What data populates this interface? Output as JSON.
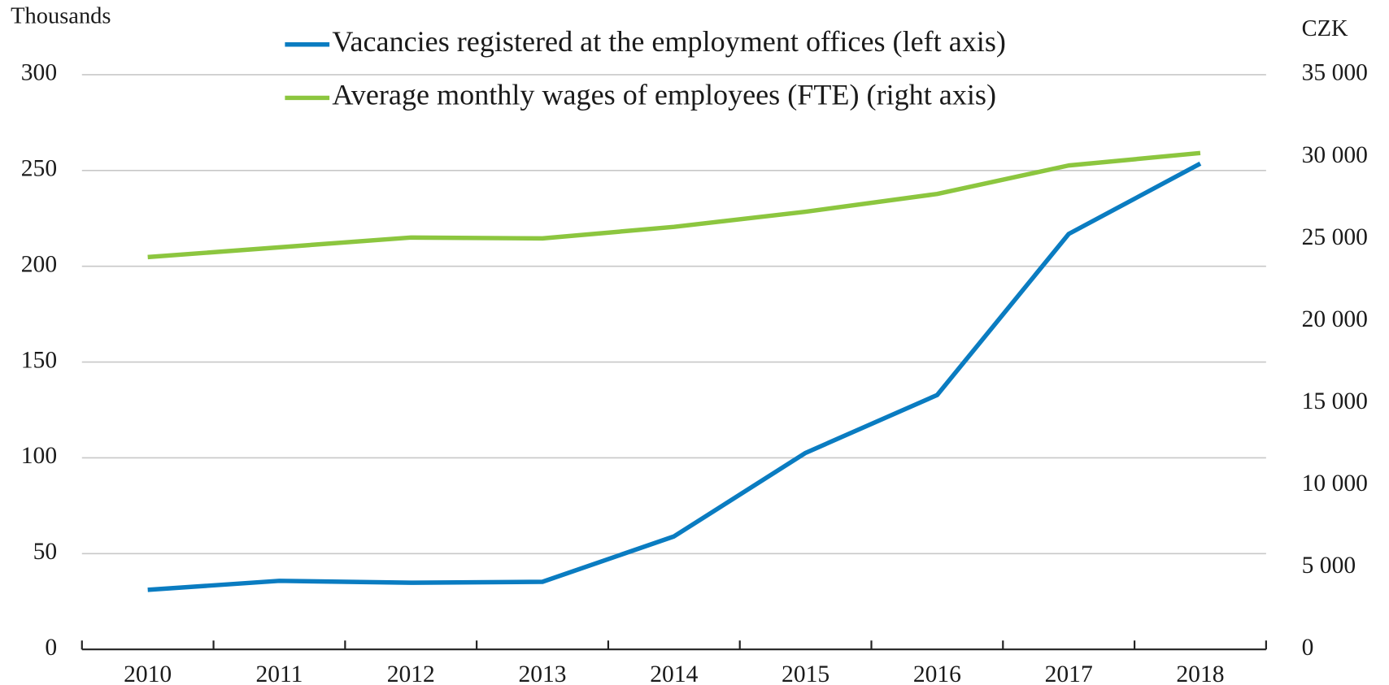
{
  "chart_data": {
    "type": "line",
    "y_label": "Thousands",
    "y2_label": "CZK",
    "categories": [
      "2010",
      "2011",
      "2012",
      "2013",
      "2014",
      "2015",
      "2016",
      "2017",
      "2018"
    ],
    "series": [
      {
        "name": "Vacancies registered at the employment offices (left axis)",
        "color": "#0a7cc1",
        "values": [
          31.1,
          35.8,
          34.8,
          35.3,
          59,
          102.6,
          132.8,
          216.9,
          253.6
        ]
      },
      {
        "name": "Average monthly wages of employees (FTE) (right axis)",
        "color": "#8cc63f",
        "axis": "y2",
        "values": [
          23893,
          24490,
          25085,
          25031,
          25735,
          26656,
          27740,
          29474,
          30232
        ]
      }
    ],
    "ylim": [
      0,
      300
    ],
    "yticks": [
      0,
      50,
      100,
      150,
      200,
      250,
      300
    ],
    "y2lim": [
      0,
      35000
    ],
    "y2ticks": [
      0,
      {
        "value": 5000,
        "label": "5 000"
      },
      {
        "value": 10000,
        "label": "10 000"
      },
      {
        "value": 15000,
        "label": "15 000"
      },
      {
        "value": 20000,
        "label": "20 000"
      },
      {
        "value": 25000,
        "label": "25 000"
      },
      {
        "value": 30000,
        "label": "30 000"
      },
      {
        "value": 35000,
        "label": "35 000"
      }
    ],
    "grid": true
  }
}
